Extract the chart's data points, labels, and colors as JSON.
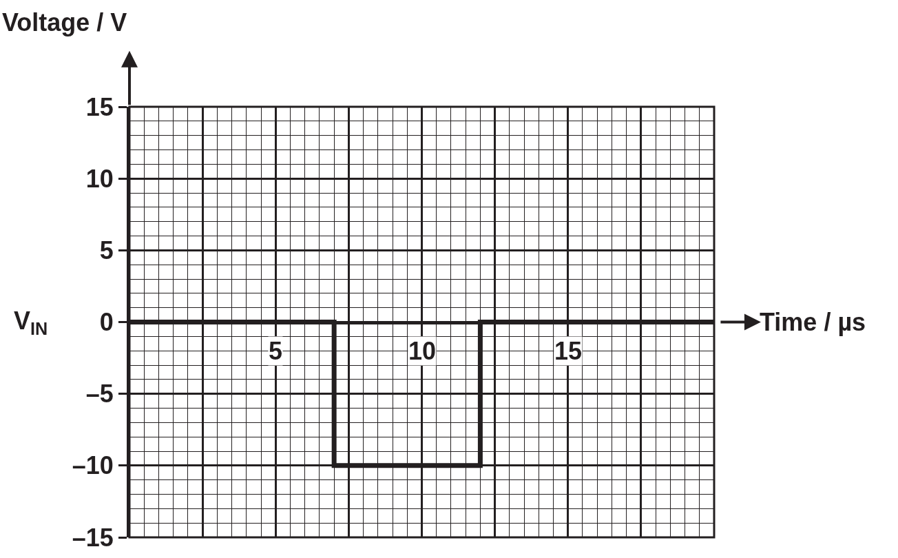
{
  "chart_data": {
    "type": "step",
    "xlabel": "Time / µs",
    "ylabel": "Voltage / V",
    "annotations": [
      "V$_{IN}$"
    ],
    "x": [
      0,
      7,
      12,
      20
    ],
    "series": [
      {
        "color": "#231f20",
        "values": [
          0,
          -10,
          0,
          0
        ]
      }
    ],
    "xlim": [
      0,
      20
    ],
    "xticks": [
      {
        "value": 2.5,
        "label": null
      },
      5,
      {
        "value": 7.5,
        "label": null
      },
      10,
      {
        "value": 12.5,
        "label": null
      },
      15,
      {
        "value": 17.5,
        "label": null
      }
    ],
    "ylim": [
      -15,
      15
    ],
    "yticks": [
      {
        "value": -15,
        "label": "–15"
      },
      {
        "value": -10,
        "label": "–10"
      },
      {
        "value": -5,
        "label": "–5"
      },
      0,
      5,
      10,
      15
    ],
    "grid": true,
    "line_style": "solid"
  }
}
